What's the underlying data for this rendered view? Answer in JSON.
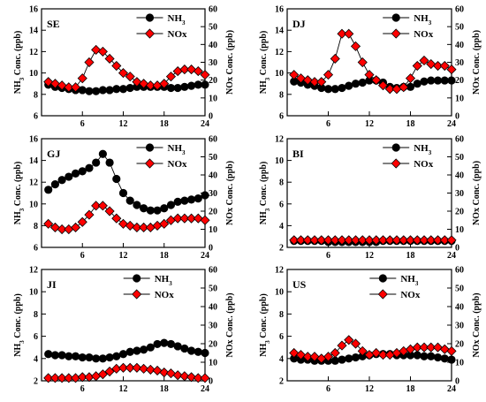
{
  "chart_data": [
    {
      "type": "line",
      "title": "SE",
      "xlabel": "",
      "ylabel": "NH3 Conc. (ppb)",
      "y2label": "NOx Conc. (ppb)",
      "xlim": [
        0,
        24
      ],
      "xticks": [
        6,
        12,
        18,
        24
      ],
      "ylim": [
        6,
        16
      ],
      "yticks": [
        6,
        8,
        10,
        12,
        14,
        16
      ],
      "y2lim": [
        0,
        60
      ],
      "y2ticks": [
        0,
        10,
        20,
        30,
        40,
        50,
        60
      ],
      "legend_position": "top-right",
      "x": [
        1,
        2,
        3,
        4,
        5,
        6,
        7,
        8,
        9,
        10,
        11,
        12,
        13,
        14,
        15,
        16,
        17,
        18,
        19,
        20,
        21,
        22,
        23,
        24
      ],
      "series": [
        {
          "name": "NH3",
          "axis": "left",
          "marker": "circle",
          "color": "#000000",
          "values": [
            8.9,
            8.7,
            8.6,
            8.5,
            8.4,
            8.4,
            8.3,
            8.3,
            8.4,
            8.4,
            8.5,
            8.5,
            8.6,
            8.7,
            8.7,
            8.7,
            8.7,
            8.7,
            8.6,
            8.6,
            8.7,
            8.8,
            8.9,
            8.9
          ]
        },
        {
          "name": "NOx",
          "axis": "right",
          "marker": "diamond",
          "color": "#ff0000",
          "values": [
            19,
            18,
            17,
            16,
            16,
            21,
            30,
            37,
            36,
            32,
            28,
            24,
            22,
            19,
            18,
            17,
            17,
            18,
            22,
            25,
            26,
            26,
            25,
            23
          ]
        }
      ]
    },
    {
      "type": "line",
      "title": "DJ",
      "xlabel": "",
      "ylabel": "NH3 Conc. (ppb)",
      "y2label": "NOx Conc. (ppb)",
      "xlim": [
        0,
        24
      ],
      "xticks": [
        6,
        12,
        18,
        24
      ],
      "ylim": [
        6,
        16
      ],
      "yticks": [
        6,
        8,
        10,
        12,
        14,
        16
      ],
      "y2lim": [
        0,
        60
      ],
      "y2ticks": [
        0,
        10,
        20,
        30,
        40,
        50,
        60
      ],
      "legend_position": "top-right",
      "x": [
        1,
        2,
        3,
        4,
        5,
        6,
        7,
        8,
        9,
        10,
        11,
        12,
        13,
        14,
        15,
        16,
        17,
        18,
        19,
        20,
        21,
        22,
        23,
        24
      ],
      "series": [
        {
          "name": "NH3",
          "axis": "left",
          "marker": "circle",
          "color": "#000000",
          "values": [
            9.2,
            9.1,
            8.9,
            8.8,
            8.6,
            8.5,
            8.5,
            8.6,
            8.8,
            9.0,
            9.1,
            9.3,
            9.3,
            9.1,
            8.7,
            8.6,
            8.7,
            8.7,
            9.0,
            9.2,
            9.3,
            9.3,
            9.3,
            9.3
          ]
        },
        {
          "name": "NOx",
          "axis": "right",
          "marker": "diamond",
          "color": "#ff0000",
          "values": [
            23,
            21,
            20,
            19,
            19,
            23,
            32,
            46,
            46,
            39,
            30,
            23,
            20,
            17,
            15,
            15,
            16,
            21,
            28,
            31,
            29,
            28,
            28,
            26
          ]
        }
      ]
    },
    {
      "type": "line",
      "title": "GJ",
      "xlabel": "",
      "ylabel": "NH3 Conc. (ppb)",
      "y2label": "NOx Conc. (ppb)",
      "xlim": [
        0,
        24
      ],
      "xticks": [
        6,
        12,
        18,
        24
      ],
      "ylim": [
        6,
        16
      ],
      "yticks": [
        6,
        8,
        10,
        12,
        14,
        16
      ],
      "y2lim": [
        0,
        60
      ],
      "y2ticks": [
        0,
        10,
        20,
        30,
        40,
        50,
        60
      ],
      "legend_position": "top-right",
      "x": [
        1,
        2,
        3,
        4,
        5,
        6,
        7,
        8,
        9,
        10,
        11,
        12,
        13,
        14,
        15,
        16,
        17,
        18,
        19,
        20,
        21,
        22,
        23,
        24
      ],
      "series": [
        {
          "name": "NH3",
          "axis": "left",
          "marker": "circle",
          "color": "#000000",
          "values": [
            11.3,
            11.8,
            12.2,
            12.5,
            12.8,
            13.0,
            13.3,
            13.8,
            14.6,
            13.8,
            12.3,
            11.0,
            10.3,
            9.9,
            9.6,
            9.4,
            9.4,
            9.6,
            9.9,
            10.2,
            10.3,
            10.4,
            10.5,
            10.8
          ]
        },
        {
          "name": "NOx",
          "axis": "right",
          "marker": "diamond",
          "color": "#ff0000",
          "values": [
            13,
            11,
            10,
            10,
            11,
            14,
            18,
            23,
            23,
            20,
            16,
            13,
            12,
            11,
            11,
            11,
            12,
            13,
            15,
            16,
            16,
            16,
            16,
            15
          ]
        }
      ]
    },
    {
      "type": "line",
      "title": "BI",
      "xlabel": "",
      "ylabel": "NH3 Conc. (ppb)",
      "y2label": "NOx Conc. (ppb)",
      "xlim": [
        0,
        24
      ],
      "xticks": [
        6,
        12,
        18,
        24
      ],
      "ylim": [
        2,
        12
      ],
      "yticks": [
        2,
        4,
        6,
        8,
        10,
        12
      ],
      "y2lim": [
        0,
        60
      ],
      "y2ticks": [
        0,
        10,
        20,
        30,
        40,
        50,
        60
      ],
      "legend_position": "top-right",
      "x": [
        1,
        2,
        3,
        4,
        5,
        6,
        7,
        8,
        9,
        10,
        11,
        12,
        13,
        14,
        15,
        16,
        17,
        18,
        19,
        20,
        21,
        22,
        23,
        24
      ],
      "series": [
        {
          "name": "NH3",
          "axis": "left",
          "marker": "circle",
          "color": "#000000",
          "values": [
            2.6,
            2.6,
            2.6,
            2.6,
            2.6,
            2.5,
            2.5,
            2.5,
            2.5,
            2.5,
            2.5,
            2.5,
            2.5,
            2.6,
            2.6,
            2.6,
            2.6,
            2.6,
            2.6,
            2.6,
            2.6,
            2.6,
            2.6,
            2.6
          ]
        },
        {
          "name": "NOx",
          "axis": "right",
          "marker": "diamond",
          "color": "#ff0000",
          "values": [
            4,
            4,
            4,
            4,
            4,
            4,
            4,
            4,
            4,
            4,
            4,
            4,
            4,
            4,
            4,
            4,
            4,
            4,
            4,
            4,
            4,
            4,
            4,
            4
          ]
        }
      ]
    },
    {
      "type": "line",
      "title": "JI",
      "xlabel": "",
      "ylabel": "NH3 Conc. (ppb)",
      "y2label": "NOx Conc. (ppb)",
      "xlim": [
        0,
        24
      ],
      "xticks": [
        6,
        12,
        18,
        24
      ],
      "ylim": [
        2,
        12
      ],
      "yticks": [
        2,
        4,
        6,
        8,
        10,
        12
      ],
      "y2lim": [
        0,
        60
      ],
      "y2ticks": [
        0,
        10,
        20,
        30,
        40,
        50,
        60
      ],
      "legend_position": "top-center",
      "x": [
        1,
        2,
        3,
        4,
        5,
        6,
        7,
        8,
        9,
        10,
        11,
        12,
        13,
        14,
        15,
        16,
        17,
        18,
        19,
        20,
        21,
        22,
        23,
        24
      ],
      "series": [
        {
          "name": "NH3",
          "axis": "left",
          "marker": "circle",
          "color": "#000000",
          "values": [
            4.4,
            4.3,
            4.3,
            4.2,
            4.2,
            4.1,
            4.1,
            4.0,
            4.0,
            4.1,
            4.2,
            4.4,
            4.6,
            4.7,
            4.8,
            5.0,
            5.3,
            5.4,
            5.3,
            5.1,
            4.9,
            4.7,
            4.6,
            4.5
          ]
        },
        {
          "name": "NOx",
          "axis": "right",
          "marker": "diamond",
          "color": "#ff0000",
          "values": [
            1.5,
            1.5,
            1.5,
            1.5,
            1.5,
            2,
            2,
            2.5,
            3.5,
            5,
            6.5,
            7,
            7,
            7,
            6.5,
            6,
            5.5,
            4.5,
            4,
            3,
            2.5,
            2,
            1.5,
            1.5
          ]
        }
      ]
    },
    {
      "type": "line",
      "title": "US",
      "xlabel": "",
      "ylabel": "NH3 Conc. (ppb)",
      "y2label": "NOx Conc. (ppb)",
      "xlim": [
        0,
        24
      ],
      "xticks": [
        6,
        12,
        18,
        24
      ],
      "ylim": [
        2,
        12
      ],
      "yticks": [
        2,
        4,
        6,
        8,
        10,
        12
      ],
      "y2lim": [
        0,
        60
      ],
      "y2ticks": [
        0,
        10,
        20,
        30,
        40,
        50,
        60
      ],
      "legend_position": "top-center",
      "x": [
        1,
        2,
        3,
        4,
        5,
        6,
        7,
        8,
        9,
        10,
        11,
        12,
        13,
        14,
        15,
        16,
        17,
        18,
        19,
        20,
        21,
        22,
        23,
        24
      ],
      "series": [
        {
          "name": "NH3",
          "axis": "left",
          "marker": "circle",
          "color": "#000000",
          "values": [
            4.0,
            3.9,
            3.9,
            3.8,
            3.8,
            3.8,
            3.8,
            3.9,
            4.0,
            4.1,
            4.2,
            4.3,
            4.4,
            4.4,
            4.4,
            4.3,
            4.3,
            4.3,
            4.3,
            4.2,
            4.2,
            4.1,
            4.0,
            3.9
          ]
        },
        {
          "name": "NOx",
          "axis": "right",
          "marker": "diamond",
          "color": "#ff0000",
          "values": [
            15,
            14,
            13,
            13,
            12,
            13,
            15,
            19,
            22,
            20,
            16,
            14,
            15,
            14,
            14,
            15,
            16,
            17,
            18,
            18,
            18,
            18,
            17,
            16
          ]
        }
      ]
    }
  ]
}
